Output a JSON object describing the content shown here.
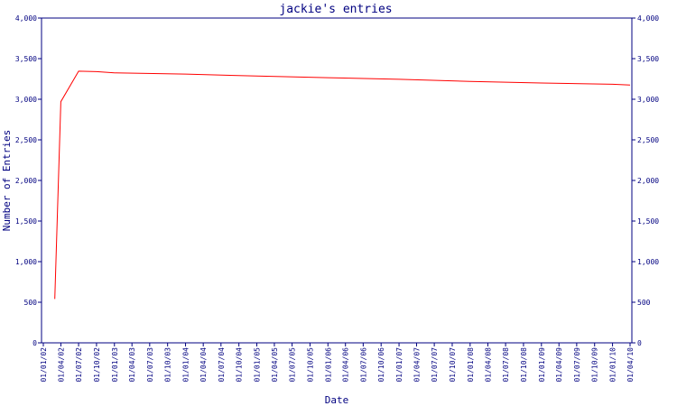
{
  "chart_data": {
    "type": "line",
    "title": "jackie's entries",
    "xlabel": "Date",
    "ylabel": "Number of Entries",
    "ylim": [
      0,
      4000
    ],
    "y_ticks": [
      "0",
      "500",
      "1,000",
      "1,500",
      "2,000",
      "2,500",
      "3,000",
      "3,500",
      "4,000"
    ],
    "x_ticks": [
      "01/01/02",
      "01/04/02",
      "01/07/02",
      "01/10/02",
      "01/01/03",
      "01/04/03",
      "01/07/03",
      "01/10/03",
      "01/01/04",
      "01/04/04",
      "01/07/04",
      "01/10/04",
      "01/01/05",
      "01/04/05",
      "01/07/05",
      "01/10/05",
      "01/01/06",
      "01/04/06",
      "01/07/06",
      "01/10/06",
      "01/01/07",
      "01/04/07",
      "01/07/07",
      "01/10/07",
      "01/01/08",
      "01/04/08",
      "01/07/08",
      "01/10/08",
      "01/01/09",
      "01/04/09",
      "01/07/09",
      "01/10/09",
      "01/01/10",
      "01/04/10"
    ],
    "grid": false,
    "series": [
      {
        "color": "#ff0000",
        "points": [
          {
            "x": "01/03/02",
            "y": 540
          },
          {
            "x": "01/04/02",
            "y": 2970
          },
          {
            "x": "01/07/02",
            "y": 3345
          },
          {
            "x": "01/10/02",
            "y": 3340
          },
          {
            "x": "01/01/03",
            "y": 3325
          },
          {
            "x": "01/01/04",
            "y": 3310
          },
          {
            "x": "01/01/05",
            "y": 3285
          },
          {
            "x": "01/01/06",
            "y": 3265
          },
          {
            "x": "01/01/07",
            "y": 3245
          },
          {
            "x": "01/01/08",
            "y": 3220
          },
          {
            "x": "01/01/09",
            "y": 3200
          },
          {
            "x": "01/01/10",
            "y": 3185
          },
          {
            "x": "01/04/10",
            "y": 3175
          }
        ]
      }
    ]
  }
}
